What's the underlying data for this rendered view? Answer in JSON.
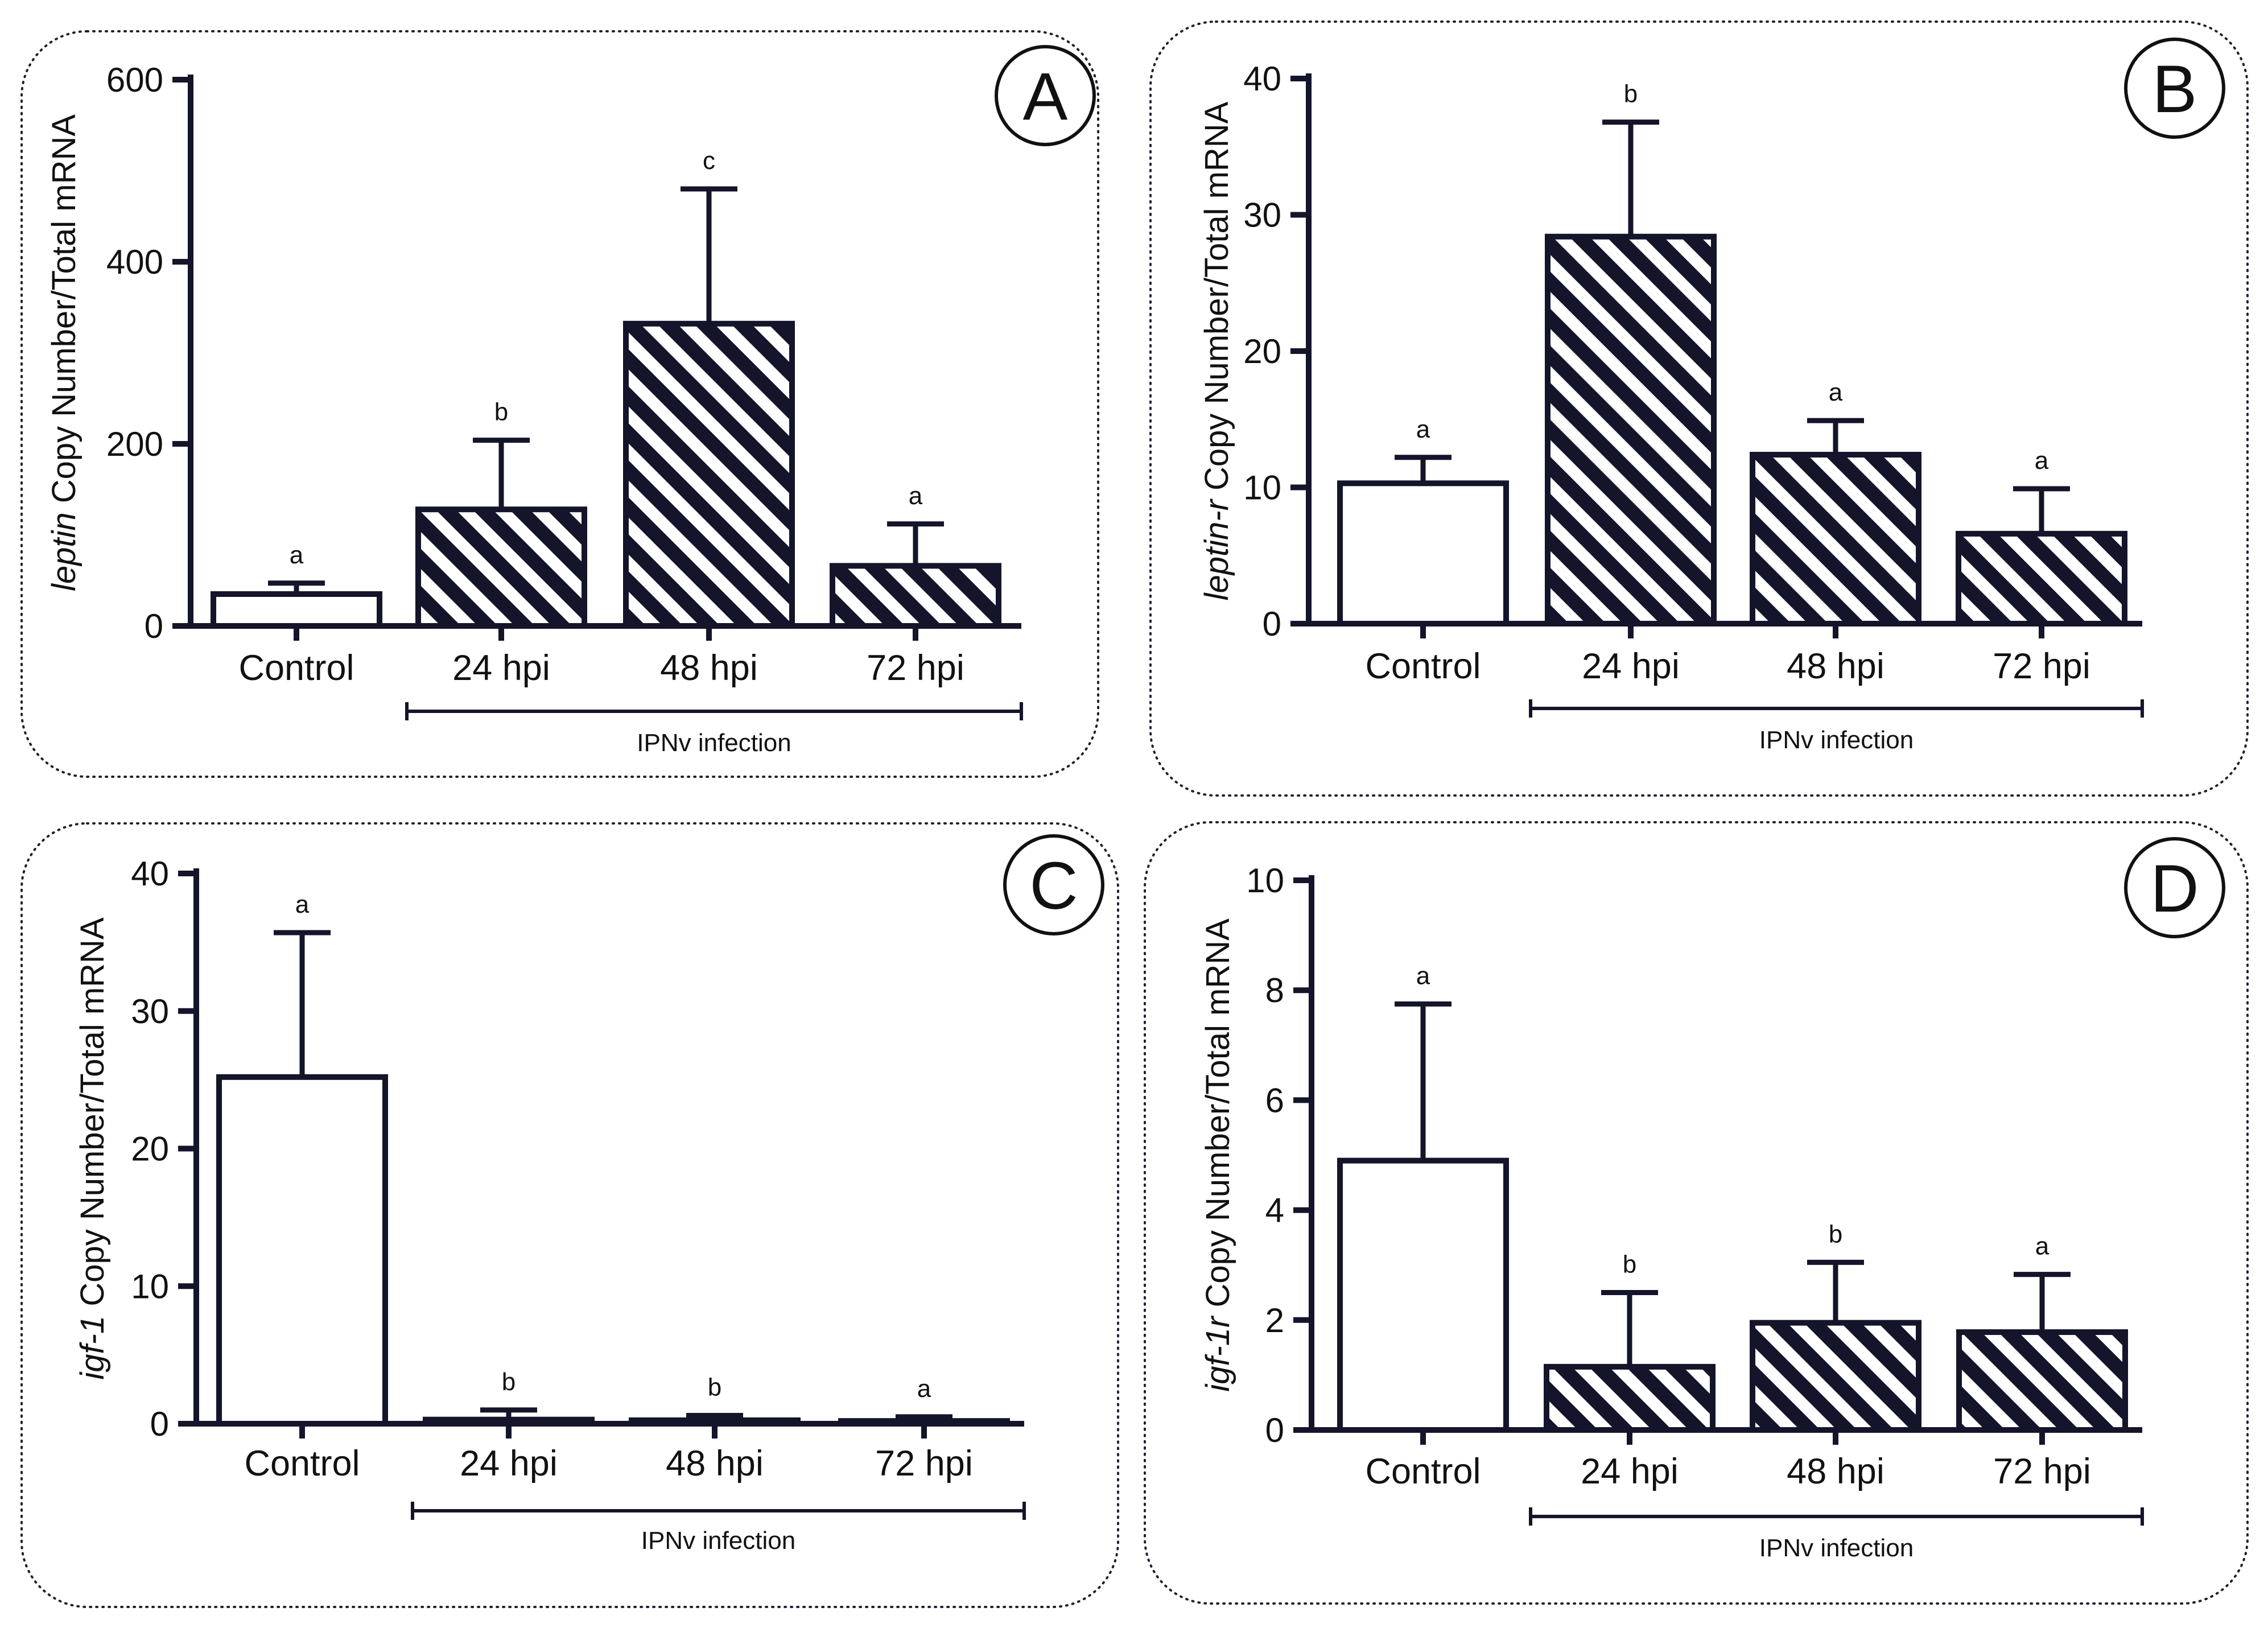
{
  "chart_data": [
    {
      "panel": "A",
      "type": "bar",
      "ylabel_gene": "leptin",
      "ylabel_rest": " Copy Number/Total mRNA",
      "categories": [
        "Control",
        "24 hpi",
        "48 hpi",
        "72 hpi"
      ],
      "values": [
        35,
        128,
        332,
        66
      ],
      "errors": [
        12,
        76,
        148,
        46
      ],
      "significance": [
        "a",
        "b",
        "c",
        "a"
      ],
      "hatched": [
        false,
        true,
        true,
        true
      ],
      "ylim": [
        0,
        600
      ],
      "yticks": [
        0,
        200,
        400,
        600
      ],
      "ytick_labels": [
        "0",
        "200",
        "400",
        "600"
      ],
      "bracket_label": "IPNv infection"
    },
    {
      "panel": "B",
      "type": "bar",
      "ylabel_gene": "leptin-r",
      "ylabel_rest": " Copy Number/Total mRNA",
      "categories": [
        "Control",
        "24 hpi",
        "48 hpi",
        "72 hpi"
      ],
      "values": [
        10.3,
        28.4,
        12.4,
        6.6
      ],
      "errors": [
        1.9,
        8.4,
        2.5,
        3.3
      ],
      "significance": [
        "a",
        "b",
        "a",
        "a"
      ],
      "hatched": [
        false,
        true,
        true,
        true
      ],
      "ylim": [
        0,
        40
      ],
      "yticks": [
        0,
        10,
        20,
        30,
        40
      ],
      "ytick_labels": [
        "0",
        "10",
        "20",
        "30",
        "40"
      ],
      "bracket_label": "IPNv infection"
    },
    {
      "panel": "C",
      "type": "bar",
      "ylabel_gene": "igf-1",
      "ylabel_rest": " Copy Number/Total mRNA",
      "categories": [
        "Control",
        "24 hpi",
        "48 hpi",
        "72 hpi"
      ],
      "values": [
        25.2,
        0.3,
        0.25,
        0.2
      ],
      "errors": [
        10.5,
        0.7,
        0.35,
        0.3
      ],
      "significance": [
        "a",
        "b",
        "b",
        "a"
      ],
      "hatched": [
        false,
        true,
        true,
        true
      ],
      "ylim": [
        0,
        40
      ],
      "yticks": [
        0,
        10,
        20,
        30,
        40
      ],
      "ytick_labels": [
        "0",
        "10",
        "20",
        "30",
        "40"
      ],
      "bracket_label": "IPNv infection"
    },
    {
      "panel": "D",
      "type": "bar",
      "ylabel_gene": "igf-1r",
      "ylabel_rest": " Copy Number/Total mRNA",
      "categories": [
        "Control",
        "24 hpi",
        "48 hpi",
        "72 hpi"
      ],
      "values": [
        4.9,
        1.15,
        1.95,
        1.78
      ],
      "errors": [
        2.85,
        1.35,
        1.1,
        1.05
      ],
      "significance": [
        "a",
        "b",
        "b",
        "a"
      ],
      "hatched": [
        false,
        true,
        true,
        true
      ],
      "ylim": [
        0,
        10
      ],
      "yticks": [
        0,
        2,
        4,
        6,
        8,
        10
      ],
      "ytick_labels": [
        "0",
        "2",
        "4",
        "6",
        "8",
        "10"
      ],
      "bracket_label": "IPNv infection"
    }
  ]
}
